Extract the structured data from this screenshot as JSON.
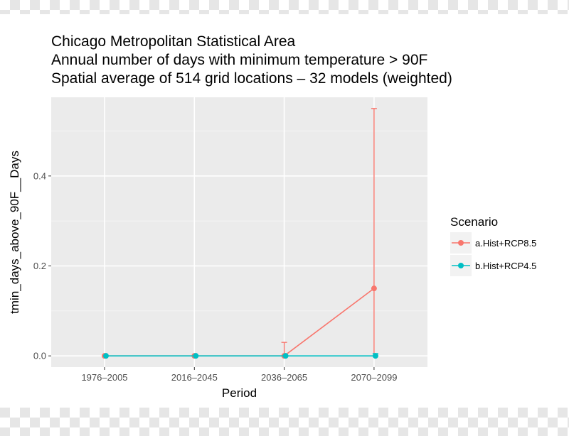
{
  "chart_data": {
    "type": "line",
    "title_lines": [
      "Chicago Metropolitan Statistical Area",
      "Annual number of days with minimum temperature > 90F",
      "Spatial average of 514 grid locations – 32 models (weighted)"
    ],
    "xlabel": "Period",
    "ylabel": "tmin_days_above_90F__Days",
    "categories": [
      "1976–2005",
      "2016–2045",
      "2036–2065",
      "2070–2099"
    ],
    "ylim": [
      -0.025,
      0.575
    ],
    "yticks": [
      0.0,
      0.2,
      0.4
    ],
    "ytick_labels": [
      "0.0",
      "0.2",
      "0.4"
    ],
    "grid": true,
    "legend": {
      "title": "Scenario",
      "position": "right"
    },
    "series": [
      {
        "name": "a.Hist+RCP8.5",
        "color": "#F8766D",
        "values": [
          0.0,
          0.0,
          0.0,
          0.15
        ],
        "error_low": [
          0.0,
          0.0,
          0.0,
          0.0
        ],
        "error_high": [
          0.0,
          0.0,
          0.03,
          0.55
        ]
      },
      {
        "name": "b.Hist+RCP4.5",
        "color": "#00BFC4",
        "values": [
          0.0,
          0.0,
          0.0,
          0.0
        ],
        "error_low": [
          0.0,
          0.0,
          0.0,
          0.0
        ],
        "error_high": [
          0.0,
          0.0,
          0.0,
          0.005
        ]
      }
    ]
  }
}
